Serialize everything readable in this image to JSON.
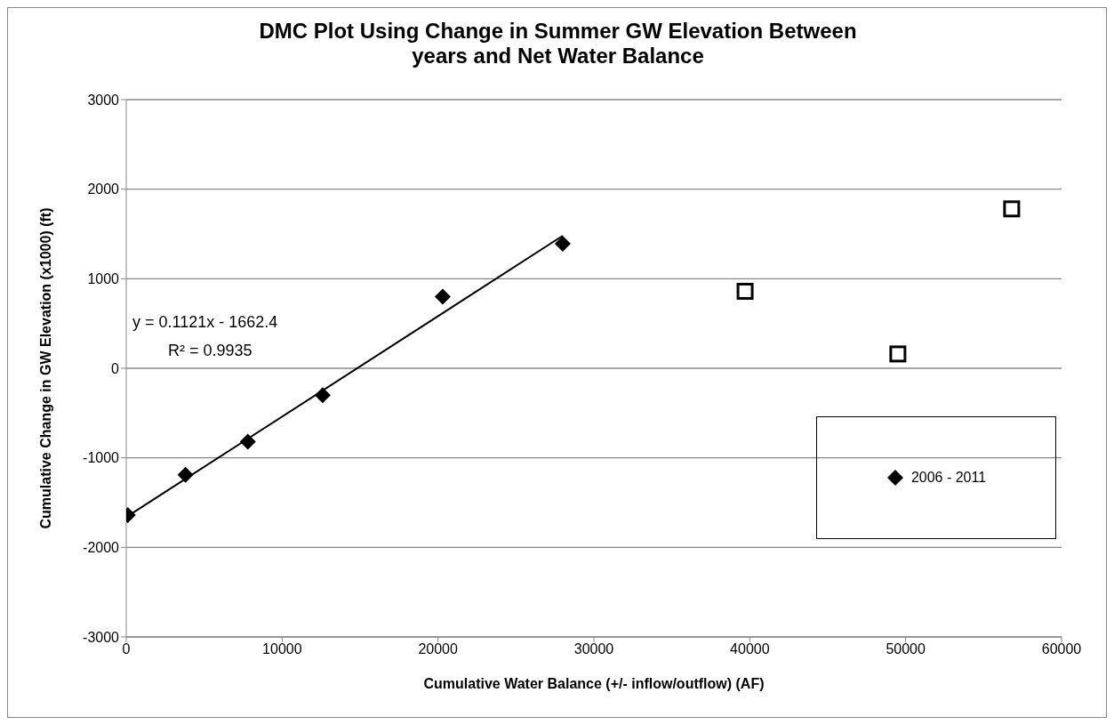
{
  "chart_data": {
    "type": "scatter",
    "title": "DMC Plot Using Change in Summer GW Elevation Between years and Net Water Balance",
    "xlabel": "Cumulative Water Balance (+/- inflow/outflow) (AF)",
    "ylabel": "Cumulative Change in GW Elevation (x1000) (ft)",
    "series": [
      {
        "name": "2006 - 2011",
        "marker": "diamond",
        "color": "#000000",
        "x": [
          100,
          3800,
          7800,
          12600,
          20300,
          28000
        ],
        "values": [
          -1640,
          -1190,
          -820,
          -300,
          800,
          1390
        ]
      },
      {
        "marker": "square",
        "color": "#000000",
        "x": [
          39700,
          49500,
          56800
        ],
        "values": [
          860,
          160,
          1780
        ]
      },
      {
        "type": "line",
        "marker": "none",
        "color": "#000000",
        "x": [
          100,
          28000
        ],
        "values": [
          -1650,
          1480
        ]
      }
    ],
    "annotations": [
      "y = 0.1121x - 1662.4",
      "R² = 0.9935"
    ],
    "xlim": [
      0,
      60000
    ],
    "xticks": [
      0,
      10000,
      20000,
      30000,
      40000,
      50000,
      60000
    ],
    "ylim": [
      -3000,
      3000
    ],
    "yticks": [
      -3000,
      -2000,
      -1000,
      0,
      1000,
      2000,
      3000
    ],
    "grid": "y",
    "legend": "right"
  }
}
